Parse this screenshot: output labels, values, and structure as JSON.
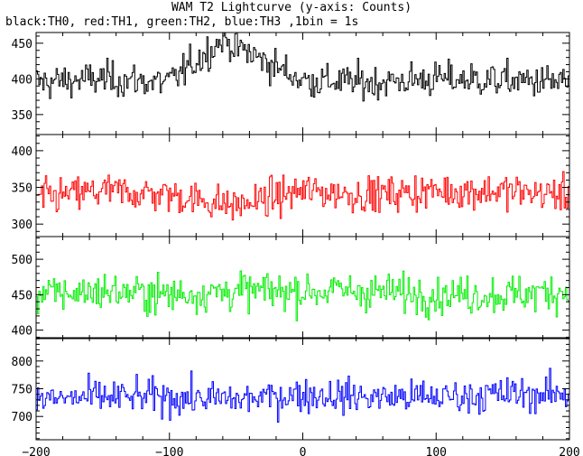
{
  "header": {
    "title": "WAM T2 Lightcurve (y-axis: Counts)",
    "subtitle": "black:TH0, red:TH1, green:TH2, blue:TH3 ,1bin = 1s"
  },
  "chart_data": {
    "type": "line",
    "title": "WAM T2 Lightcurve (y-axis: Counts)",
    "subtitle": "black:TH0, red:TH1, green:TH2, blue:TH3 ,1bin = 1s",
    "ylabel": "Counts",
    "x_range": [
      -200,
      200
    ],
    "bin_seconds": 1,
    "x_ticks": [
      -200,
      -100,
      0,
      100,
      200
    ],
    "x_tick_labels": [
      "−200",
      "−100",
      "0",
      "100",
      "200"
    ],
    "grid": false,
    "panels": [
      {
        "series_name": "TH0",
        "color": "#000000",
        "ylim": [
          322,
          465
        ],
        "yticks": [
          350,
          400,
          450
        ],
        "mean": 397,
        "noise_sigma": 22,
        "samples": [
          {
            "x": -200,
            "y": 395
          },
          {
            "x": -150,
            "y": 400
          },
          {
            "x": -100,
            "y": 395
          },
          {
            "x": -60,
            "y": 455
          },
          {
            "x": 0,
            "y": 398
          },
          {
            "x": 50,
            "y": 395
          },
          {
            "x": 100,
            "y": 400
          },
          {
            "x": 150,
            "y": 398
          },
          {
            "x": 200,
            "y": 395
          }
        ]
      },
      {
        "series_name": "TH1",
        "color": "#ff0000",
        "ylim": [
          283,
          422
        ],
        "yticks": [
          300,
          350,
          400
        ],
        "mean": 340,
        "noise_sigma": 22,
        "samples": [
          {
            "x": -200,
            "y": 335
          },
          {
            "x": -150,
            "y": 345
          },
          {
            "x": -100,
            "y": 340
          },
          {
            "x": -50,
            "y": 325
          },
          {
            "x": 0,
            "y": 345
          },
          {
            "x": 50,
            "y": 340
          },
          {
            "x": 100,
            "y": 345
          },
          {
            "x": 150,
            "y": 345
          },
          {
            "x": 200,
            "y": 340
          }
        ]
      },
      {
        "series_name": "TH2",
        "color": "#00ee00",
        "ylim": [
          388,
          532
        ],
        "yticks": [
          400,
          450,
          500
        ],
        "mean": 452,
        "noise_sigma": 24,
        "samples": [
          {
            "x": -200,
            "y": 450
          },
          {
            "x": -150,
            "y": 455
          },
          {
            "x": -100,
            "y": 450
          },
          {
            "x": -50,
            "y": 455
          },
          {
            "x": 0,
            "y": 455
          },
          {
            "x": 50,
            "y": 455
          },
          {
            "x": 100,
            "y": 450
          },
          {
            "x": 150,
            "y": 450
          },
          {
            "x": 200,
            "y": 455
          }
        ]
      },
      {
        "series_name": "TH3",
        "color": "#0000ff",
        "ylim": [
          658,
          842
        ],
        "yticks": [
          700,
          750,
          800
        ],
        "mean": 735,
        "noise_sigma": 28,
        "samples": [
          {
            "x": -200,
            "y": 730
          },
          {
            "x": -150,
            "y": 735
          },
          {
            "x": -100,
            "y": 735
          },
          {
            "x": -50,
            "y": 730
          },
          {
            "x": 0,
            "y": 740
          },
          {
            "x": 50,
            "y": 735
          },
          {
            "x": 100,
            "y": 735
          },
          {
            "x": 150,
            "y": 740
          },
          {
            "x": 200,
            "y": 740
          }
        ]
      }
    ]
  }
}
